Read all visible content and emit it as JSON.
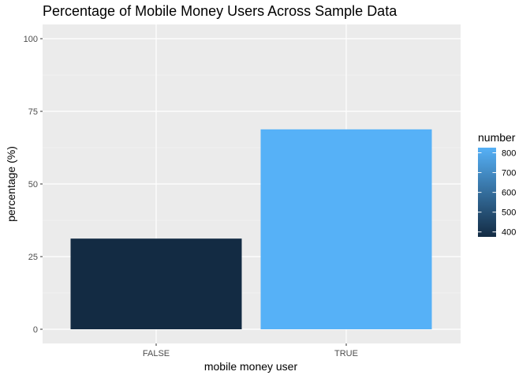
{
  "chart_data": {
    "type": "bar",
    "title": "Percentage of Mobile Money Users Across Sample Data",
    "xlabel": "mobile money user",
    "ylabel": "percentage (%)",
    "categories": [
      "FALSE",
      "TRUE"
    ],
    "values": [
      31.2,
      68.8
    ],
    "fill_values": [
      375,
      826
    ],
    "ylim": [
      0,
      100
    ],
    "yticks": [
      0,
      25,
      50,
      75,
      100
    ],
    "grid": true,
    "legend": {
      "title": "number",
      "position": "right",
      "range": [
        375,
        826
      ],
      "ticks": [
        400,
        500,
        600,
        700,
        800
      ],
      "color_low": "#132B43",
      "color_high": "#56B1F7"
    },
    "colors": {
      "panel_background": "#EBEBEB",
      "grid_major": "#FFFFFF",
      "grid_minor": "#F5F5F5"
    }
  }
}
